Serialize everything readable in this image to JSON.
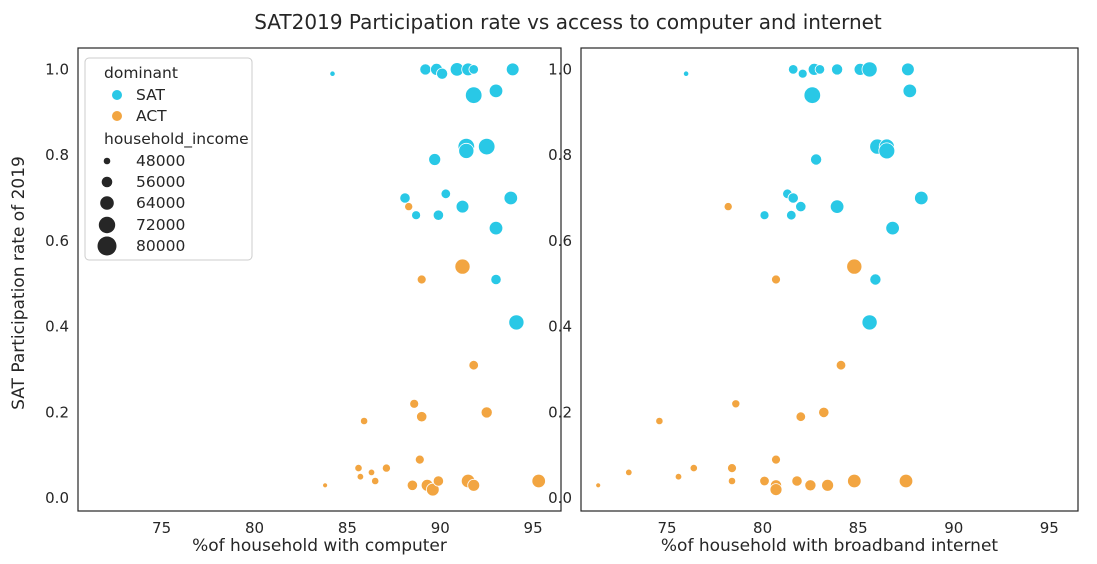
{
  "figure": {
    "title": "SAT2019 Participation rate vs access to computer and internet",
    "ylabel": "SAT Participation rate of 2019"
  },
  "colors": {
    "SAT": "#29c8e6",
    "ACT": "#f2a541",
    "frame": "#262626",
    "background": "#ffffff"
  },
  "legend": {
    "hue_title": "dominant",
    "hue_items": [
      {
        "label": "SAT",
        "key": "SAT"
      },
      {
        "label": "ACT",
        "key": "ACT"
      }
    ],
    "size_title": "household_income",
    "size_items": [
      "48000",
      "56000",
      "64000",
      "72000",
      "80000"
    ],
    "placement": "upper-left"
  },
  "chart_data": [
    {
      "type": "scatter",
      "xlabel": "%of household with computer",
      "ylabel": "SAT Participation rate of 2019",
      "xlim": [
        70.5,
        96.5
      ],
      "ylim": [
        -0.03,
        1.05
      ],
      "xticks": [
        75,
        80,
        85,
        90,
        95
      ],
      "yticks": [
        0.0,
        0.2,
        0.4,
        0.6,
        0.8,
        1.0
      ],
      "grid": false,
      "series": [
        {
          "name": "SAT",
          "points": [
            {
              "x": 84.2,
              "y": 0.99,
              "income": 45000
            },
            {
              "x": 89.2,
              "y": 1.0,
              "income": 60000
            },
            {
              "x": 89.8,
              "y": 1.0,
              "income": 62000
            },
            {
              "x": 90.1,
              "y": 0.99,
              "income": 60000
            },
            {
              "x": 90.9,
              "y": 1.0,
              "income": 66000
            },
            {
              "x": 91.5,
              "y": 1.0,
              "income": 64000
            },
            {
              "x": 91.8,
              "y": 1.0,
              "income": 56000
            },
            {
              "x": 93.9,
              "y": 1.0,
              "income": 64000
            },
            {
              "x": 91.8,
              "y": 0.94,
              "income": 74000
            },
            {
              "x": 93.0,
              "y": 0.95,
              "income": 66000
            },
            {
              "x": 91.4,
              "y": 0.82,
              "income": 74000
            },
            {
              "x": 92.5,
              "y": 0.82,
              "income": 74000
            },
            {
              "x": 91.4,
              "y": 0.81,
              "income": 70000
            },
            {
              "x": 89.7,
              "y": 0.79,
              "income": 62000
            },
            {
              "x": 88.1,
              "y": 0.7,
              "income": 58000
            },
            {
              "x": 90.3,
              "y": 0.71,
              "income": 56000
            },
            {
              "x": 93.8,
              "y": 0.7,
              "income": 66000
            },
            {
              "x": 91.2,
              "y": 0.68,
              "income": 64000
            },
            {
              "x": 88.7,
              "y": 0.66,
              "income": 54000
            },
            {
              "x": 89.9,
              "y": 0.66,
              "income": 58000
            },
            {
              "x": 93.0,
              "y": 0.63,
              "income": 66000
            },
            {
              "x": 93.0,
              "y": 0.51,
              "income": 58000
            },
            {
              "x": 94.1,
              "y": 0.41,
              "income": 70000
            }
          ]
        },
        {
          "name": "ACT",
          "points": [
            {
              "x": 88.3,
              "y": 0.68,
              "income": 52000
            },
            {
              "x": 91.2,
              "y": 0.54,
              "income": 70000
            },
            {
              "x": 89.0,
              "y": 0.51,
              "income": 54000
            },
            {
              "x": 91.8,
              "y": 0.31,
              "income": 56000
            },
            {
              "x": 88.6,
              "y": 0.22,
              "income": 54000
            },
            {
              "x": 92.5,
              "y": 0.2,
              "income": 60000
            },
            {
              "x": 85.9,
              "y": 0.18,
              "income": 50000
            },
            {
              "x": 89.0,
              "y": 0.19,
              "income": 58000
            },
            {
              "x": 88.9,
              "y": 0.09,
              "income": 54000
            },
            {
              "x": 85.6,
              "y": 0.07,
              "income": 50000
            },
            {
              "x": 86.3,
              "y": 0.06,
              "income": 48000
            },
            {
              "x": 87.1,
              "y": 0.07,
              "income": 52000
            },
            {
              "x": 85.7,
              "y": 0.05,
              "income": 48000
            },
            {
              "x": 86.5,
              "y": 0.04,
              "income": 50000
            },
            {
              "x": 83.8,
              "y": 0.03,
              "income": 44000
            },
            {
              "x": 88.5,
              "y": 0.03,
              "income": 58000
            },
            {
              "x": 89.3,
              "y": 0.03,
              "income": 62000
            },
            {
              "x": 89.6,
              "y": 0.02,
              "income": 64000
            },
            {
              "x": 89.9,
              "y": 0.04,
              "income": 58000
            },
            {
              "x": 91.5,
              "y": 0.04,
              "income": 66000
            },
            {
              "x": 91.8,
              "y": 0.03,
              "income": 62000
            },
            {
              "x": 95.3,
              "y": 0.04,
              "income": 66000
            }
          ]
        }
      ]
    },
    {
      "type": "scatter",
      "xlabel": "%of household with broadband internet",
      "ylabel": "",
      "xlim": [
        70.5,
        96.5
      ],
      "ylim": [
        -0.03,
        1.05
      ],
      "xticks": [
        75,
        80,
        85,
        90,
        95
      ],
      "yticks": [
        0.0,
        0.2,
        0.4,
        0.6,
        0.8,
        1.0
      ],
      "grid": false,
      "series": [
        {
          "name": "SAT",
          "points": [
            {
              "x": 76.0,
              "y": 0.99,
              "income": 45000
            },
            {
              "x": 81.6,
              "y": 1.0,
              "income": 56000
            },
            {
              "x": 82.7,
              "y": 1.0,
              "income": 62000
            },
            {
              "x": 83.0,
              "y": 1.0,
              "income": 56000
            },
            {
              "x": 83.9,
              "y": 1.0,
              "income": 60000
            },
            {
              "x": 85.1,
              "y": 1.0,
              "income": 62000
            },
            {
              "x": 85.6,
              "y": 1.0,
              "income": 70000
            },
            {
              "x": 87.6,
              "y": 1.0,
              "income": 64000
            },
            {
              "x": 82.1,
              "y": 0.99,
              "income": 54000
            },
            {
              "x": 82.6,
              "y": 0.94,
              "income": 74000
            },
            {
              "x": 87.7,
              "y": 0.95,
              "income": 66000
            },
            {
              "x": 86.0,
              "y": 0.82,
              "income": 70000
            },
            {
              "x": 86.5,
              "y": 0.82,
              "income": 70000
            },
            {
              "x": 86.5,
              "y": 0.81,
              "income": 72000
            },
            {
              "x": 82.8,
              "y": 0.79,
              "income": 60000
            },
            {
              "x": 81.3,
              "y": 0.71,
              "income": 56000
            },
            {
              "x": 81.6,
              "y": 0.7,
              "income": 58000
            },
            {
              "x": 88.3,
              "y": 0.7,
              "income": 66000
            },
            {
              "x": 82.0,
              "y": 0.68,
              "income": 58000
            },
            {
              "x": 83.9,
              "y": 0.68,
              "income": 66000
            },
            {
              "x": 80.1,
              "y": 0.66,
              "income": 54000
            },
            {
              "x": 81.5,
              "y": 0.66,
              "income": 56000
            },
            {
              "x": 86.8,
              "y": 0.63,
              "income": 66000
            },
            {
              "x": 85.9,
              "y": 0.51,
              "income": 60000
            },
            {
              "x": 85.6,
              "y": 0.41,
              "income": 70000
            }
          ]
        },
        {
          "name": "ACT",
          "points": [
            {
              "x": 78.2,
              "y": 0.68,
              "income": 52000
            },
            {
              "x": 84.8,
              "y": 0.54,
              "income": 70000
            },
            {
              "x": 80.7,
              "y": 0.51,
              "income": 54000
            },
            {
              "x": 84.1,
              "y": 0.31,
              "income": 56000
            },
            {
              "x": 78.6,
              "y": 0.22,
              "income": 52000
            },
            {
              "x": 83.2,
              "y": 0.2,
              "income": 58000
            },
            {
              "x": 74.6,
              "y": 0.18,
              "income": 50000
            },
            {
              "x": 82.0,
              "y": 0.19,
              "income": 56000
            },
            {
              "x": 80.7,
              "y": 0.09,
              "income": 54000
            },
            {
              "x": 73.0,
              "y": 0.06,
              "income": 48000
            },
            {
              "x": 76.4,
              "y": 0.07,
              "income": 50000
            },
            {
              "x": 78.4,
              "y": 0.07,
              "income": 54000
            },
            {
              "x": 75.6,
              "y": 0.05,
              "income": 48000
            },
            {
              "x": 78.4,
              "y": 0.04,
              "income": 50000
            },
            {
              "x": 71.4,
              "y": 0.03,
              "income": 44000
            },
            {
              "x": 80.1,
              "y": 0.04,
              "income": 56000
            },
            {
              "x": 80.7,
              "y": 0.03,
              "income": 60000
            },
            {
              "x": 80.7,
              "y": 0.02,
              "income": 62000
            },
            {
              "x": 81.8,
              "y": 0.04,
              "income": 58000
            },
            {
              "x": 82.5,
              "y": 0.03,
              "income": 60000
            },
            {
              "x": 83.4,
              "y": 0.03,
              "income": 62000
            },
            {
              "x": 84.8,
              "y": 0.04,
              "income": 66000
            },
            {
              "x": 87.5,
              "y": 0.04,
              "income": 66000
            }
          ]
        }
      ]
    }
  ]
}
